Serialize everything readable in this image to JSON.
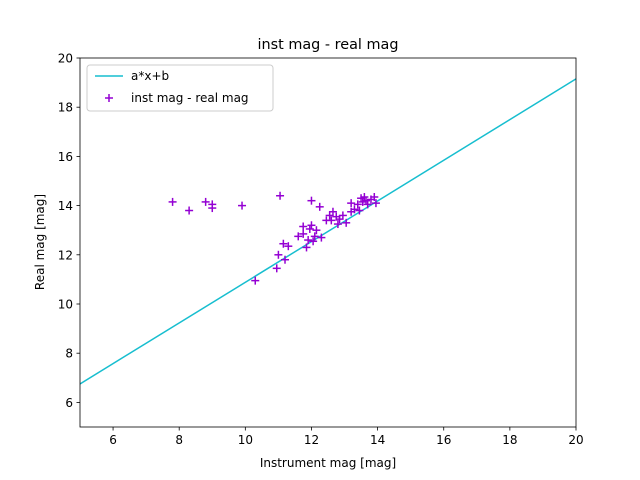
{
  "chart_data": {
    "type": "scatter",
    "title": "inst mag - real mag",
    "xlabel": "Instrument mag [mag]",
    "ylabel": "Real mag [mag]",
    "xlim": [
      5,
      20
    ],
    "ylim": [
      5,
      20
    ],
    "xticks": [
      6,
      8,
      10,
      12,
      14,
      16,
      18,
      20
    ],
    "yticks": [
      6,
      8,
      10,
      12,
      14,
      16,
      18,
      20
    ],
    "grid": false,
    "legend_position": "top-left",
    "series": [
      {
        "name": "a*x+b",
        "type": "line",
        "color": "#17becf",
        "x": [
          5,
          20
        ],
        "y": [
          6.75,
          19.15
        ]
      },
      {
        "name": "inst mag - real mag",
        "type": "scatter",
        "marker": "+",
        "color": "#9400d3",
        "points": [
          [
            7.8,
            14.15
          ],
          [
            8.3,
            13.8
          ],
          [
            8.8,
            14.15
          ],
          [
            9.0,
            14.05
          ],
          [
            9.0,
            13.9
          ],
          [
            9.9,
            14.0
          ],
          [
            10.3,
            10.95
          ],
          [
            10.95,
            11.45
          ],
          [
            11.0,
            12.0
          ],
          [
            11.05,
            14.4
          ],
          [
            11.15,
            12.45
          ],
          [
            11.2,
            11.8
          ],
          [
            11.3,
            12.35
          ],
          [
            11.6,
            12.75
          ],
          [
            11.75,
            12.85
          ],
          [
            11.75,
            13.15
          ],
          [
            11.85,
            12.3
          ],
          [
            11.9,
            12.6
          ],
          [
            11.95,
            13.05
          ],
          [
            12.0,
            13.2
          ],
          [
            12.0,
            14.2
          ],
          [
            12.05,
            12.55
          ],
          [
            12.1,
            12.75
          ],
          [
            12.15,
            13.0
          ],
          [
            12.25,
            13.95
          ],
          [
            12.3,
            12.7
          ],
          [
            12.45,
            13.4
          ],
          [
            12.55,
            13.6
          ],
          [
            12.6,
            13.4
          ],
          [
            12.65,
            13.75
          ],
          [
            12.75,
            13.55
          ],
          [
            12.8,
            13.25
          ],
          [
            12.85,
            13.45
          ],
          [
            12.95,
            13.6
          ],
          [
            13.05,
            13.3
          ],
          [
            13.2,
            13.75
          ],
          [
            13.2,
            14.1
          ],
          [
            13.3,
            13.85
          ],
          [
            13.4,
            14.05
          ],
          [
            13.45,
            13.8
          ],
          [
            13.5,
            14.3
          ],
          [
            13.55,
            14.15
          ],
          [
            13.6,
            14.35
          ],
          [
            13.65,
            14.2
          ],
          [
            13.7,
            14.05
          ],
          [
            13.8,
            14.25
          ],
          [
            13.9,
            14.35
          ],
          [
            13.95,
            14.1
          ]
        ]
      }
    ]
  }
}
